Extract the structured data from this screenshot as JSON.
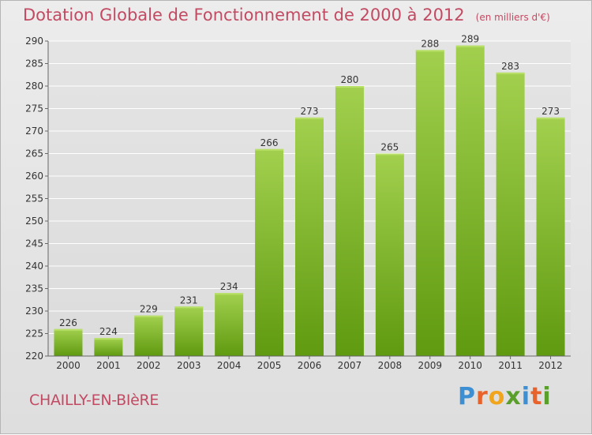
{
  "header": {
    "title": "Dotation Globale de Fonctionnement de 2000 à 2012",
    "unit": "(en milliers d'€)"
  },
  "footer": {
    "commune": "CHAILLY-EN-BIèRE",
    "logo": "Proxiti"
  },
  "colors": {
    "title": "#c24a62",
    "bar_light": "#a2d04e",
    "bar_dark": "#5f9a10",
    "grid": "#ffffff",
    "background": "#e6e6e6"
  },
  "chart_data": {
    "type": "bar",
    "categories": [
      "2000",
      "2001",
      "2002",
      "2003",
      "2004",
      "2005",
      "2006",
      "2007",
      "2008",
      "2009",
      "2010",
      "2011",
      "2012"
    ],
    "values": [
      226,
      224,
      229,
      231,
      234,
      266,
      273,
      280,
      265,
      288,
      289,
      283,
      273
    ],
    "title": "Dotation Globale de Fonctionnement de 2000 à 2012",
    "subtitle": "(en milliers d'€)",
    "xlabel": "",
    "ylabel": "",
    "ylim": [
      220,
      290
    ],
    "yticks": [
      220,
      225,
      230,
      235,
      240,
      245,
      250,
      255,
      260,
      265,
      270,
      275,
      280,
      285,
      290
    ],
    "grid": true,
    "data_labels": true
  }
}
